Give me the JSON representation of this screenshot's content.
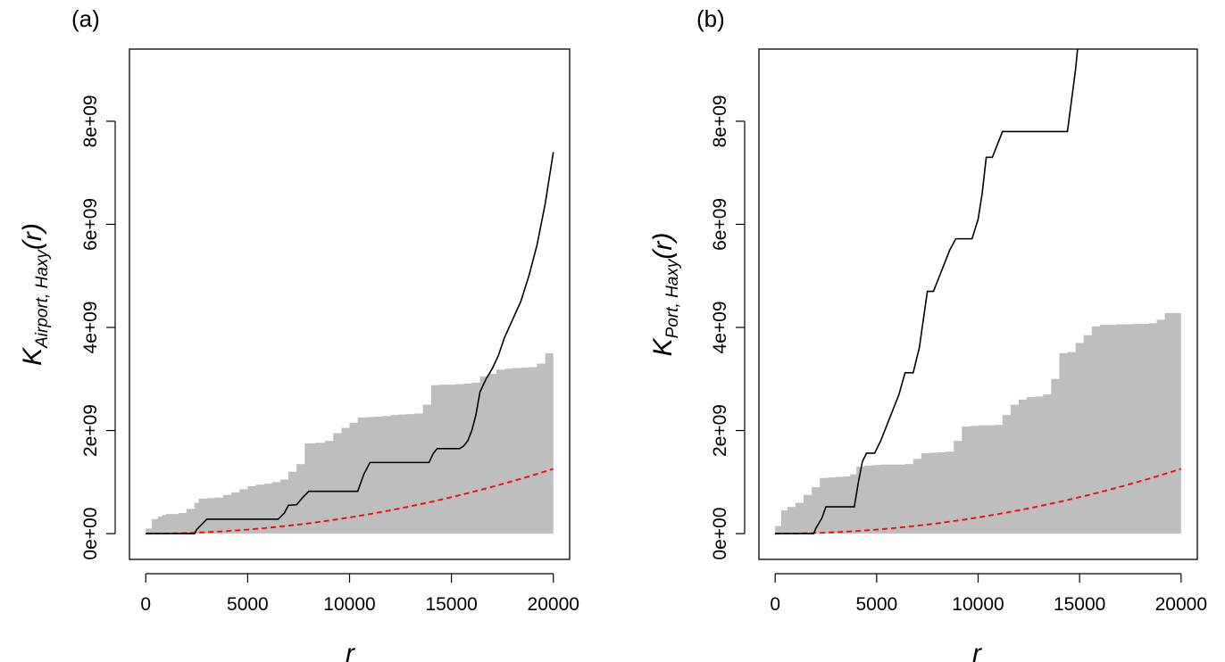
{
  "chart_data": [
    {
      "type": "line",
      "panel_label": "(a)",
      "xlabel": "r",
      "ylabel_main": "K",
      "ylabel_sub": "Airport, Haxy",
      "ylabel_tail": "(r)",
      "xlim": [
        -800,
        20800
      ],
      "ylim": [
        -500000000,
        9400000000
      ],
      "x_ticks": [
        0,
        5000,
        10000,
        15000,
        20000
      ],
      "x_tick_labels": [
        "0",
        "5000",
        "10000",
        "15000",
        "20000"
      ],
      "y_ticks": [
        0,
        2000000000,
        4000000000,
        6000000000,
        8000000000
      ],
      "y_tick_labels": [
        "0e+00",
        "2e+09",
        "4e+09",
        "6e+09",
        "8e+09"
      ],
      "grid": false,
      "colors": {
        "envelope": "#bebebe",
        "observed": "#000000",
        "theoretical": "#ff0000"
      },
      "envelope": {
        "name": "simulation envelope",
        "x": [
          0,
          300,
          600,
          800,
          1000,
          1600,
          2000,
          2400,
          2600,
          3000,
          3400,
          3800,
          4200,
          4600,
          5000,
          5400,
          5800,
          6200,
          6600,
          7000,
          7400,
          7800,
          8300,
          8800,
          9200,
          9600,
          10000,
          10400,
          10800,
          11200,
          11600,
          12000,
          12400,
          12800,
          13200,
          13600,
          14000,
          14400,
          14800,
          15200,
          15600,
          16000,
          16400,
          16800,
          17200,
          17600,
          18000,
          18400,
          18800,
          19200,
          19600,
          20000
        ],
        "upper": [
          100000000,
          280000000,
          330000000,
          360000000,
          380000000,
          400000000,
          480000000,
          600000000,
          680000000,
          690000000,
          700000000,
          750000000,
          800000000,
          860000000,
          920000000,
          950000000,
          970000000,
          1000000000,
          1050000000,
          1200000000,
          1350000000,
          1750000000,
          1760000000,
          1800000000,
          1950000000,
          2050000000,
          2150000000,
          2250000000,
          2260000000,
          2270000000,
          2280000000,
          2300000000,
          2310000000,
          2320000000,
          2330000000,
          2500000000,
          2880000000,
          2890000000,
          2890000000,
          2900000000,
          2910000000,
          2930000000,
          3050000000,
          3100000000,
          3180000000,
          3200000000,
          3210000000,
          3220000000,
          3230000000,
          3300000000,
          3500000000,
          3800000000
        ],
        "lower": 0
      },
      "observed": {
        "name": "observed",
        "x": [
          0,
          2400,
          2500,
          2800,
          3000,
          6500,
          6800,
          7000,
          7400,
          7700,
          8000,
          10400,
          10700,
          11000,
          13900,
          14100,
          14300,
          15400,
          15600,
          15800,
          16000,
          16200,
          16400,
          16700,
          17000,
          17300,
          17600,
          18000,
          18400,
          18800,
          19200,
          19600,
          20000
        ],
        "y": [
          0,
          0,
          80000000,
          200000000,
          280000000,
          280000000,
          400000000,
          550000000,
          560000000,
          700000000,
          820000000,
          820000000,
          1150000000,
          1380000000,
          1380000000,
          1550000000,
          1650000000,
          1650000000,
          1700000000,
          1800000000,
          2000000000,
          2300000000,
          2750000000,
          3000000000,
          3200000000,
          3450000000,
          3800000000,
          4150000000,
          4500000000,
          5000000000,
          5600000000,
          6400000000,
          7400000000
        ]
      },
      "theoretical": {
        "name": "theoretical",
        "x": [
          0,
          1000,
          2000,
          3000,
          4000,
          5000,
          6000,
          7000,
          8000,
          9000,
          10000,
          11000,
          12000,
          13000,
          14000,
          15000,
          16000,
          17000,
          18000,
          19000,
          20000
        ],
        "y": [
          0,
          3100000,
          12500000,
          28000000,
          50000000,
          78000000,
          113000000,
          153000000,
          200000000,
          254000000,
          314000000,
          380000000,
          452000000,
          531000000,
          616000000,
          707000000,
          804000000,
          908000000,
          1018000000,
          1134000000,
          1257000000
        ]
      }
    },
    {
      "type": "line",
      "panel_label": "(b)",
      "xlabel": "r",
      "ylabel_main": "K",
      "ylabel_sub": "Port, Haxy",
      "ylabel_tail": "(r)",
      "xlim": [
        -800,
        20800
      ],
      "ylim": [
        -500000000,
        9400000000
      ],
      "x_ticks": [
        0,
        5000,
        10000,
        15000,
        20000
      ],
      "x_tick_labels": [
        "0",
        "5000",
        "10000",
        "15000",
        "20000"
      ],
      "y_ticks": [
        0,
        2000000000,
        4000000000,
        6000000000,
        8000000000
      ],
      "y_tick_labels": [
        "0e+00",
        "2e+09",
        "4e+09",
        "6e+09",
        "8e+09"
      ],
      "grid": false,
      "colors": {
        "envelope": "#bebebe",
        "observed": "#000000",
        "theoretical": "#ff0000"
      },
      "envelope": {
        "name": "simulation envelope",
        "x": [
          0,
          300,
          600,
          1000,
          1400,
          1800,
          2200,
          2600,
          3000,
          3400,
          3700,
          4000,
          4400,
          4800,
          5200,
          5600,
          6000,
          6400,
          6800,
          7200,
          7600,
          8000,
          8400,
          8800,
          9200,
          9600,
          10000,
          10400,
          10800,
          11200,
          11600,
          12000,
          12400,
          12800,
          13200,
          13600,
          14000,
          14400,
          14800,
          15200,
          15600,
          16000,
          16400,
          16800,
          17200,
          17600,
          18000,
          18400,
          18800,
          19200,
          19600,
          20000
        ],
        "upper": [
          150000000,
          450000000,
          520000000,
          600000000,
          750000000,
          900000000,
          1080000000,
          1090000000,
          1100000000,
          1110000000,
          1150000000,
          1300000000,
          1320000000,
          1330000000,
          1340000000,
          1340000000,
          1340000000,
          1350000000,
          1450000000,
          1560000000,
          1570000000,
          1580000000,
          1590000000,
          1800000000,
          2080000000,
          2090000000,
          2100000000,
          2100000000,
          2110000000,
          2300000000,
          2500000000,
          2600000000,
          2650000000,
          2660000000,
          2700000000,
          3000000000,
          3500000000,
          3520000000,
          3700000000,
          3850000000,
          4020000000,
          4050000000,
          4050000000,
          4060000000,
          4060000000,
          4070000000,
          4070000000,
          4080000000,
          4150000000,
          4280000000,
          4280000000,
          4280000000
        ],
        "lower": 0
      },
      "observed": {
        "name": "observed",
        "x": [
          0,
          1900,
          2000,
          2300,
          2500,
          3900,
          4100,
          4300,
          4500,
          4900,
          5200,
          5500,
          5800,
          6100,
          6400,
          6800,
          7100,
          7300,
          7500,
          7800,
          8000,
          8300,
          8600,
          8900,
          9300,
          9700,
          10000,
          10200,
          10400,
          10700,
          10900,
          11200,
          11500,
          14400,
          14600,
          14800,
          14900
        ],
        "y": [
          0,
          0,
          100000000,
          300000000,
          520000000,
          520000000,
          1000000000,
          1400000000,
          1560000000,
          1560000000,
          1800000000,
          2100000000,
          2400000000,
          2700000000,
          3120000000,
          3120000000,
          3600000000,
          4150000000,
          4700000000,
          4700000000,
          4900000000,
          5200000000,
          5500000000,
          5720000000,
          5720000000,
          5720000000,
          6100000000,
          6600000000,
          7300000000,
          7300000000,
          7500000000,
          7800000000,
          7800000000,
          7800000000,
          8400000000,
          9000000000,
          9400000000
        ]
      },
      "theoretical": {
        "name": "theoretical",
        "x": [
          0,
          1000,
          2000,
          3000,
          4000,
          5000,
          6000,
          7000,
          8000,
          9000,
          10000,
          11000,
          12000,
          13000,
          14000,
          15000,
          16000,
          17000,
          18000,
          19000,
          20000
        ],
        "y": [
          0,
          3100000,
          12500000,
          28000000,
          50000000,
          78000000,
          113000000,
          153000000,
          200000000,
          254000000,
          314000000,
          380000000,
          452000000,
          531000000,
          616000000,
          707000000,
          804000000,
          908000000,
          1018000000,
          1134000000,
          1257000000
        ]
      }
    }
  ]
}
